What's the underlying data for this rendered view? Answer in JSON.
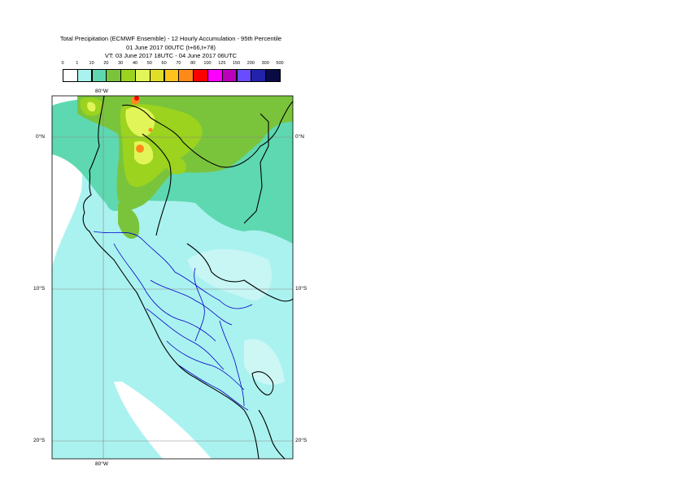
{
  "title": {
    "line1": "Total Precipitation (ECMWF Ensemble) - 12 Hourly Accumulation - 95th Percentile",
    "line2": "01 June 2017 00UTC (t+66,t+78)",
    "line3": "VT: 03 June 2017 18UTC - 04 June 2017 06UTC"
  },
  "legend": {
    "ticks": [
      "0",
      "1",
      "10",
      "20",
      "30",
      "40",
      "50",
      "60",
      "70",
      "80",
      "100",
      "125",
      "150",
      "200",
      "300",
      "500"
    ],
    "colors": [
      "#ffffff",
      "#aaf2ef",
      "#5ed8b0",
      "#7ac43c",
      "#9bd31e",
      "#e2f558",
      "#e0de26",
      "#ffc21d",
      "#ff8a1a",
      "#ff0000",
      "#ff00ff",
      "#bb00bb",
      "#6a4cff",
      "#2222aa",
      "#0a0a44"
    ]
  },
  "map": {
    "lat_labels": [
      "0°N",
      "10°S",
      "20°S"
    ],
    "lon_labels": [
      "80°W",
      "80°W"
    ],
    "fill_colors": {
      "ocean_light": "#aaf2ef",
      "green_med": "#5ed8b0",
      "green": "#7ac43c",
      "yellow_green": "#9bd31e",
      "yellow": "#e2f558",
      "orange": "#ff8a1a",
      "red": "#ff0000",
      "coast": "#000000",
      "admin": "#0000cc",
      "grid": "#888888"
    }
  }
}
